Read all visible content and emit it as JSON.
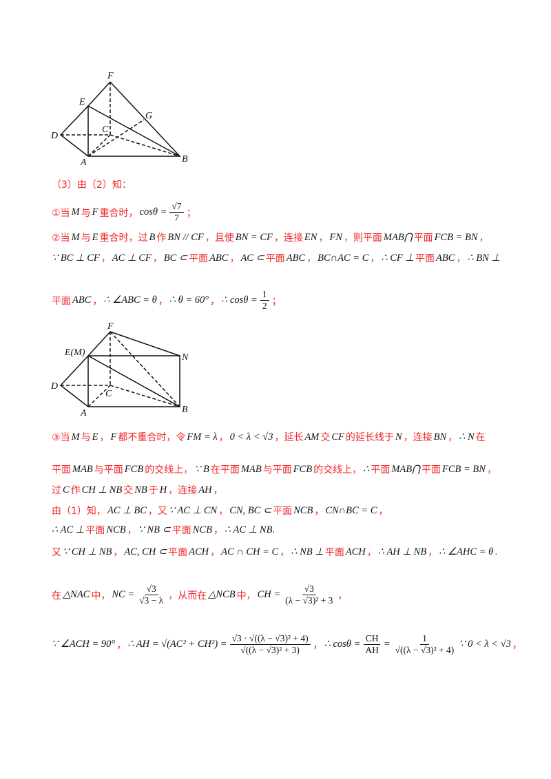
{
  "figure1": {
    "labels": [
      "F",
      "E",
      "G",
      "C",
      "D",
      "A",
      "B"
    ]
  },
  "figure2": {
    "labels": [
      "F",
      "E(M)",
      "N",
      "C",
      "D",
      "A",
      "B"
    ]
  },
  "lines": [
    {
      "segs": [
        {
          "t": "r",
          "v": "（3）由（2）知："
        }
      ]
    },
    {
      "segs": [
        {
          "t": "r",
          "v": "①当"
        },
        {
          "t": "m",
          "v": "M"
        },
        {
          "t": "r",
          "v": "与"
        },
        {
          "t": "m",
          "v": "F"
        },
        {
          "t": "r",
          "v": "重合时，"
        },
        {
          "t": "m",
          "v": "cosθ ="
        },
        {
          "t": "f",
          "n": "√7",
          "d": "7"
        },
        {
          "t": "r",
          "v": "；"
        }
      ]
    },
    {
      "segs": [
        {
          "t": "r",
          "v": "②当"
        },
        {
          "t": "m",
          "v": "M"
        },
        {
          "t": "r",
          "v": "与"
        },
        {
          "t": "m",
          "v": "E"
        },
        {
          "t": "r",
          "v": "重合时，过"
        },
        {
          "t": "m",
          "v": "B"
        },
        {
          "t": "r",
          "v": "作"
        },
        {
          "t": "m",
          "v": "BN // CF"
        },
        {
          "t": "r",
          "v": "，且使"
        },
        {
          "t": "m",
          "v": "BN = CF"
        },
        {
          "t": "r",
          "v": "，连接"
        },
        {
          "t": "m",
          "v": "EN"
        },
        {
          "t": "r",
          "v": "，"
        },
        {
          "t": "m",
          "v": "FN"
        },
        {
          "t": "r",
          "v": "，则平面"
        },
        {
          "t": "m",
          "v": "MAB⋂"
        },
        {
          "t": "r",
          "v": "平面"
        },
        {
          "t": "m",
          "v": "FCB = BN"
        },
        {
          "t": "r",
          "v": "，"
        }
      ]
    },
    {
      "segs": [
        {
          "t": "m",
          "v": "∵ BC ⊥ CF"
        },
        {
          "t": "r",
          "v": "，"
        },
        {
          "t": "m",
          "v": "AC ⊥ CF"
        },
        {
          "t": "r",
          "v": "，"
        },
        {
          "t": "m",
          "v": "BC ⊂"
        },
        {
          "t": "r",
          "v": "平面"
        },
        {
          "t": "m",
          "v": "ABC"
        },
        {
          "t": "r",
          "v": "，"
        },
        {
          "t": "m",
          "v": "AC ⊂"
        },
        {
          "t": "r",
          "v": "平面"
        },
        {
          "t": "m",
          "v": "ABC"
        },
        {
          "t": "r",
          "v": "，"
        },
        {
          "t": "m",
          "v": "BC∩AC = C"
        },
        {
          "t": "r",
          "v": "，"
        },
        {
          "t": "m",
          "v": "∴ CF ⊥"
        },
        {
          "t": "r",
          "v": "平面"
        },
        {
          "t": "m",
          "v": "ABC"
        },
        {
          "t": "r",
          "v": "，"
        },
        {
          "t": "m",
          "v": "∴ BN ⊥"
        }
      ]
    },
    {
      "segs": [
        {
          "t": "r",
          "v": "平面"
        },
        {
          "t": "m",
          "v": "ABC"
        },
        {
          "t": "r",
          "v": "，"
        },
        {
          "t": "m",
          "v": "∴ ∠ABC = θ"
        },
        {
          "t": "r",
          "v": "，"
        },
        {
          "t": "m",
          "v": "∴ θ = 60°"
        },
        {
          "t": "r",
          "v": "，"
        },
        {
          "t": "m",
          "v": "∴ cosθ ="
        },
        {
          "t": "f",
          "n": "1",
          "d": "2"
        },
        {
          "t": "r",
          "v": "；"
        }
      ]
    },
    {
      "segs": [
        {
          "t": "r",
          "v": "③当"
        },
        {
          "t": "m",
          "v": "M"
        },
        {
          "t": "r",
          "v": "与"
        },
        {
          "t": "m",
          "v": "E"
        },
        {
          "t": "r",
          "v": "，"
        },
        {
          "t": "m",
          "v": "F"
        },
        {
          "t": "r",
          "v": "都不重合时，令"
        },
        {
          "t": "m",
          "v": "FM = λ"
        },
        {
          "t": "r",
          "v": "，"
        },
        {
          "t": "m",
          "v": "0 < λ < √3"
        },
        {
          "t": "r",
          "v": "，延长"
        },
        {
          "t": "m",
          "v": "AM"
        },
        {
          "t": "r",
          "v": "交"
        },
        {
          "t": "m",
          "v": "CF"
        },
        {
          "t": "r",
          "v": "的延长线于"
        },
        {
          "t": "m",
          "v": "N"
        },
        {
          "t": "r",
          "v": "，连接"
        },
        {
          "t": "m",
          "v": "BN"
        },
        {
          "t": "r",
          "v": "，"
        },
        {
          "t": "m",
          "v": "∴ N"
        },
        {
          "t": "r",
          "v": "在"
        }
      ]
    },
    {
      "segs": [
        {
          "t": "r",
          "v": "平面"
        },
        {
          "t": "m",
          "v": "MAB"
        },
        {
          "t": "r",
          "v": "与平面"
        },
        {
          "t": "m",
          "v": "FCB"
        },
        {
          "t": "r",
          "v": "的交线上，"
        },
        {
          "t": "m",
          "v": "∵ B"
        },
        {
          "t": "r",
          "v": "在平面"
        },
        {
          "t": "m",
          "v": "MAB"
        },
        {
          "t": "r",
          "v": "与平面"
        },
        {
          "t": "m",
          "v": "FCB"
        },
        {
          "t": "r",
          "v": "的交线上，"
        },
        {
          "t": "m",
          "v": "∴"
        },
        {
          "t": "r",
          "v": "平面"
        },
        {
          "t": "m",
          "v": "MAB⋂"
        },
        {
          "t": "r",
          "v": "平面"
        },
        {
          "t": "m",
          "v": "FCB = BN"
        },
        {
          "t": "r",
          "v": "，"
        }
      ]
    },
    {
      "segs": [
        {
          "t": "r",
          "v": "过"
        },
        {
          "t": "m",
          "v": "C"
        },
        {
          "t": "r",
          "v": "作"
        },
        {
          "t": "m",
          "v": "CH ⊥ NB"
        },
        {
          "t": "r",
          "v": "交"
        },
        {
          "t": "m",
          "v": "NB"
        },
        {
          "t": "r",
          "v": "于"
        },
        {
          "t": "m",
          "v": "H"
        },
        {
          "t": "r",
          "v": "，连接"
        },
        {
          "t": "m",
          "v": "AH"
        },
        {
          "t": "r",
          "v": "，"
        }
      ]
    },
    {
      "segs": [
        {
          "t": "r",
          "v": "由（1）知，"
        },
        {
          "t": "m",
          "v": "AC ⊥ BC"
        },
        {
          "t": "r",
          "v": "，又"
        },
        {
          "t": "m",
          "v": "∵ AC ⊥ CN"
        },
        {
          "t": "r",
          "v": "，"
        },
        {
          "t": "m",
          "v": "CN, BC ⊂"
        },
        {
          "t": "r",
          "v": "平面"
        },
        {
          "t": "m",
          "v": "NCB"
        },
        {
          "t": "r",
          "v": "，"
        },
        {
          "t": "m",
          "v": "CN∩BC = C"
        },
        {
          "t": "r",
          "v": "，"
        }
      ]
    },
    {
      "segs": [
        {
          "t": "m",
          "v": "∴ AC ⊥"
        },
        {
          "t": "r",
          "v": "平面"
        },
        {
          "t": "m",
          "v": "NCB"
        },
        {
          "t": "r",
          "v": "，"
        },
        {
          "t": "m",
          "v": "∵ NB ⊂"
        },
        {
          "t": "r",
          "v": "平面"
        },
        {
          "t": "m",
          "v": "NCB"
        },
        {
          "t": "r",
          "v": "，"
        },
        {
          "t": "m",
          "v": "∴ AC ⊥ NB."
        }
      ]
    },
    {
      "segs": [
        {
          "t": "r",
          "v": "又"
        },
        {
          "t": "m",
          "v": "∵ CH ⊥ NB"
        },
        {
          "t": "r",
          "v": "，"
        },
        {
          "t": "m",
          "v": "AC, CH ⊂"
        },
        {
          "t": "r",
          "v": "平面"
        },
        {
          "t": "m",
          "v": "ACH"
        },
        {
          "t": "r",
          "v": "，"
        },
        {
          "t": "m",
          "v": "AC ∩ CH = C"
        },
        {
          "t": "r",
          "v": "，"
        },
        {
          "t": "m",
          "v": "∴ NB ⊥"
        },
        {
          "t": "r",
          "v": "平面"
        },
        {
          "t": "m",
          "v": "ACH"
        },
        {
          "t": "r",
          "v": "，"
        },
        {
          "t": "m",
          "v": "∴ AH ⊥ NB"
        },
        {
          "t": "r",
          "v": "，"
        },
        {
          "t": "m",
          "v": "∴ ∠AHC = θ"
        },
        {
          "t": "r",
          "v": "."
        }
      ]
    },
    {
      "segs": [
        {
          "t": "r",
          "v": "在"
        },
        {
          "t": "m",
          "v": "△NAC"
        },
        {
          "t": "r",
          "v": "中，"
        },
        {
          "t": "m",
          "v": "NC ="
        },
        {
          "t": "f",
          "n": "√3",
          "d": "√3 − λ"
        },
        {
          "t": "r",
          "v": "，从而在"
        },
        {
          "t": "m",
          "v": "△NCB"
        },
        {
          "t": "r",
          "v": "中，"
        },
        {
          "t": "m",
          "v": "CH ="
        },
        {
          "t": "f",
          "n": "√3",
          "d": "(λ − √3)² + 3"
        },
        {
          "t": "r",
          "v": "，"
        }
      ]
    },
    {
      "segs": [
        {
          "t": "m",
          "v": "∵ ∠ACH = 90°"
        },
        {
          "t": "r",
          "v": "，"
        },
        {
          "t": "m",
          "v": "∴ AH = √(AC² + CH²) ="
        },
        {
          "t": "f",
          "n": "√3 · √((λ − √3)² + 4)",
          "d": "√((λ − √3)² + 3)"
        },
        {
          "t": "r",
          "v": "，"
        },
        {
          "t": "m",
          "v": "∴ cosθ ="
        },
        {
          "t": "f",
          "n": "CH",
          "d": "AH"
        },
        {
          "t": "m",
          "v": "="
        },
        {
          "t": "f",
          "n": "1",
          "d": "√((λ − √3)² + 4)"
        },
        {
          "t": "m",
          "v": "∵ 0 < λ < √3"
        },
        {
          "t": "r",
          "v": "，"
        }
      ]
    }
  ]
}
